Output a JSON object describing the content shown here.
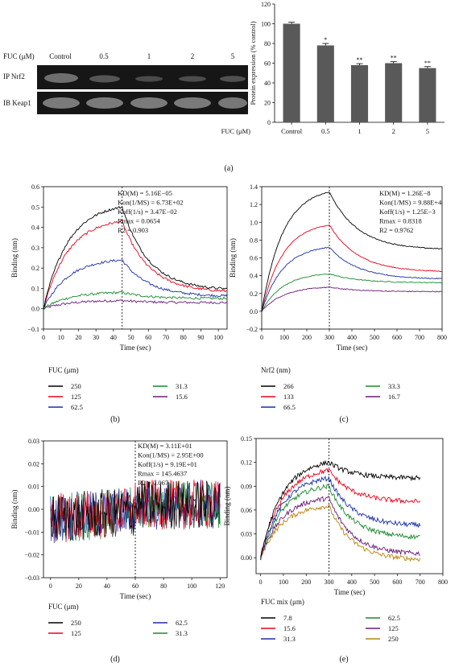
{
  "blot": {
    "header": "FUC (μM)",
    "lanes": [
      "Control",
      "0.5",
      "1",
      "2",
      "5"
    ],
    "rows": [
      "IP Nrf2",
      "IB Keap1"
    ]
  },
  "panel_labels": [
    "(a)",
    "(b)",
    "(c)",
    "(d)",
    "(e)"
  ],
  "chart_data": [
    {
      "id": "a",
      "type": "bar",
      "categories": [
        "Control",
        "0.5",
        "1",
        "2",
        "5"
      ],
      "values": [
        100,
        78,
        58,
        60,
        55
      ],
      "errors": [
        1.5,
        2,
        1.5,
        1.5,
        1.5
      ],
      "significance": [
        "",
        "*",
        "**",
        "**",
        "**"
      ],
      "xlabel": "FUC (μM)",
      "ylabel": "Protein expression (% control)",
      "ylim": [
        0,
        120
      ],
      "yticks": [
        0,
        20,
        40,
        60,
        80,
        100,
        120
      ],
      "colors": {
        "bar": "#595959"
      }
    },
    {
      "id": "b",
      "type": "line",
      "xlabel": "Time (sec)",
      "ylabel": "Binding (nm)",
      "xlim": [
        0,
        105
      ],
      "ylim": [
        -0.1,
        0.6
      ],
      "xticks": [
        0,
        10,
        20,
        30,
        40,
        50,
        60,
        70,
        80,
        90,
        100
      ],
      "yticks": [
        -0.1,
        0.0,
        0.1,
        0.2,
        0.3,
        0.4,
        0.5,
        0.6
      ],
      "dissociation_start": 45,
      "stats": [
        "KD(M) = 5.16E−05",
        "Kon(1/MS) = 6.73E+02",
        "Koff(1/s) = 3.47E−02",
        "Rmax = 0.0654",
        "R2 = 0.903"
      ],
      "legend_title": "FUC (μm)",
      "series": [
        {
          "name": "250",
          "color": "#000000",
          "plateau": 0.5,
          "end": 0.09
        },
        {
          "name": "125",
          "color": "#e8001c",
          "plateau": 0.43,
          "end": 0.08
        },
        {
          "name": "62.5",
          "color": "#1a2fa8",
          "plateau": 0.24,
          "end": 0.06
        },
        {
          "name": "31.3",
          "color": "#1a8a2e",
          "plateau": 0.08,
          "end": 0.05
        },
        {
          "name": "15.6",
          "color": "#6a1b7a",
          "plateau": 0.04,
          "end": 0.03
        }
      ]
    },
    {
      "id": "c",
      "type": "line",
      "xlabel": "Time (sec)",
      "ylabel": "Binding (nm)",
      "xlim": [
        0,
        800
      ],
      "ylim": [
        -0.2,
        1.4
      ],
      "xticks": [
        0,
        100,
        200,
        300,
        400,
        500,
        600,
        700,
        800
      ],
      "yticks": [
        -0.2,
        0.0,
        0.2,
        0.4,
        0.6,
        0.8,
        1.0,
        1.2,
        1.4
      ],
      "dissociation_start": 300,
      "stats": [
        "KD(M) = 1.26E−8",
        "Kon(1/MS) = 9.88E+4",
        "Koff(1/s) = 1.25E−3",
        "Rmax = 0.8318",
        "R2 = 0.9762"
      ],
      "legend_title": "Nrf2 (nm)",
      "series": [
        {
          "name": "266",
          "color": "#000000",
          "plateau": 1.34,
          "end": 0.69
        },
        {
          "name": "133",
          "color": "#e8001c",
          "plateau": 0.97,
          "end": 0.44
        },
        {
          "name": "66.5",
          "color": "#1a2fa8",
          "plateau": 0.72,
          "end": 0.36
        },
        {
          "name": "33.3",
          "color": "#1a8a2e",
          "plateau": 0.42,
          "end": 0.32
        },
        {
          "name": "16.7",
          "color": "#6a1b7a",
          "plateau": 0.27,
          "end": 0.22
        }
      ]
    },
    {
      "id": "d",
      "type": "line",
      "xlabel": "Time (sec)",
      "ylabel": "Binding (nm)",
      "xlim": [
        -5,
        125
      ],
      "ylim": [
        -0.03,
        0.03
      ],
      "xticks": [
        0,
        20,
        40,
        60,
        80,
        100,
        120
      ],
      "yticks": [
        -0.03,
        -0.02,
        -0.01,
        0.0,
        0.01,
        0.02,
        0.03
      ],
      "dissociation_start": 60,
      "stats": [
        "KD(M) = 3.11E+01",
        "Kon(1/MS) = 2.95E+00",
        "Koff(1/s) = 9.19E+01",
        "Rmax = 145.4637",
        "R2 = 0.067"
      ],
      "legend_title": "FUC (μm)",
      "series": [
        {
          "name": "250",
          "color": "#000000"
        },
        {
          "name": "125",
          "color": "#e8001c"
        },
        {
          "name": "62.5",
          "color": "#1a2fa8"
        },
        {
          "name": "31.3",
          "color": "#1a8a2e"
        }
      ]
    },
    {
      "id": "e",
      "type": "line",
      "xlabel": "Time (sec)",
      "ylabel": "Binding (nm)",
      "xlim": [
        -20,
        800
      ],
      "ylim": [
        -0.02,
        0.15
      ],
      "xticks": [
        0,
        100,
        200,
        300,
        400,
        500,
        600,
        700,
        800
      ],
      "yticks": [
        0.0,
        0.03,
        0.06,
        0.09,
        0.12,
        0.15
      ],
      "dissociation_start": 300,
      "legend_title": "FUC mix (μm)",
      "series": [
        {
          "name": "7.8",
          "color": "#000000",
          "plateau": 0.12,
          "end": 0.1
        },
        {
          "name": "15.6",
          "color": "#e8001c",
          "plateau": 0.11,
          "end": 0.07
        },
        {
          "name": "31.3",
          "color": "#1a2fa8",
          "plateau": 0.1,
          "end": 0.04
        },
        {
          "name": "62.5",
          "color": "#1a8a2e",
          "plateau": 0.09,
          "end": 0.025
        },
        {
          "name": "125",
          "color": "#6a1b7a",
          "plateau": 0.075,
          "end": 0.004
        },
        {
          "name": "250",
          "color": "#b8860b",
          "plateau": 0.065,
          "end": -0.003
        }
      ]
    }
  ]
}
